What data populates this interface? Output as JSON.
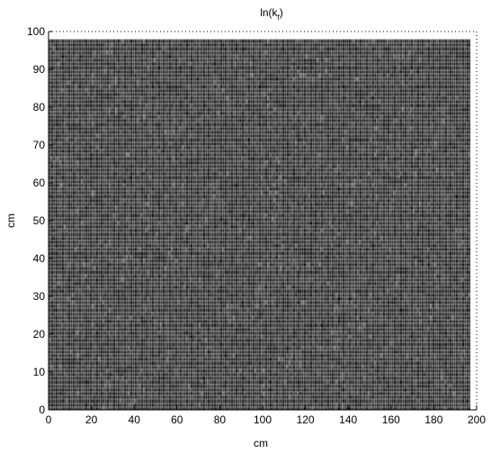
{
  "chart_data": {
    "type": "heatmap",
    "title": "ln(k_f)",
    "title_base": "ln(k",
    "title_subscript": "f",
    "title_close": ")",
    "xlabel": "cm",
    "ylabel": "cm",
    "xlim": [
      0,
      200
    ],
    "ylim": [
      0,
      100
    ],
    "x_ticks": [
      0,
      20,
      40,
      60,
      80,
      100,
      120,
      140,
      160,
      180,
      200
    ],
    "y_ticks": [
      0,
      10,
      20,
      30,
      40,
      50,
      60,
      70,
      80,
      90,
      100
    ],
    "grid_resolution_cm": 1,
    "field_extent": {
      "x": [
        0,
        197
      ],
      "y": [
        0,
        98
      ]
    },
    "colormap": "gray",
    "grid": false,
    "colors": {
      "cell_base": "#3a3a3a",
      "cell_dark": "#141414",
      "cell_light": "#9a9a9a",
      "mesh_line": "#ffffff",
      "axis": "#000000"
    },
    "dark_patches": [
      {
        "x": 12,
        "y": 74.5
      },
      {
        "x": 22,
        "y": 55.5
      },
      {
        "x": 27,
        "y": 83
      },
      {
        "x": 43,
        "y": 41
      },
      {
        "x": 52,
        "y": 40
      },
      {
        "x": 74,
        "y": 38.5
      },
      {
        "x": 74,
        "y": 35.5
      },
      {
        "x": 70,
        "y": 6.5
      },
      {
        "x": 34,
        "y": 10.5
      },
      {
        "x": 10,
        "y": 13
      },
      {
        "x": 143,
        "y": 71.5
      },
      {
        "x": 162,
        "y": 60.5
      },
      {
        "x": 175,
        "y": 6.5
      },
      {
        "x": 194,
        "y": 93.5
      },
      {
        "x": 122,
        "y": 92
      },
      {
        "x": 150,
        "y": 80
      },
      {
        "x": 67,
        "y": 65.5
      },
      {
        "x": 146,
        "y": 83.5
      },
      {
        "x": 90,
        "y": 21
      },
      {
        "x": 115,
        "y": 61
      },
      {
        "x": 165,
        "y": 37
      },
      {
        "x": 183,
        "y": 17
      },
      {
        "x": 120,
        "y": 42
      },
      {
        "x": 58,
        "y": 85
      }
    ]
  }
}
